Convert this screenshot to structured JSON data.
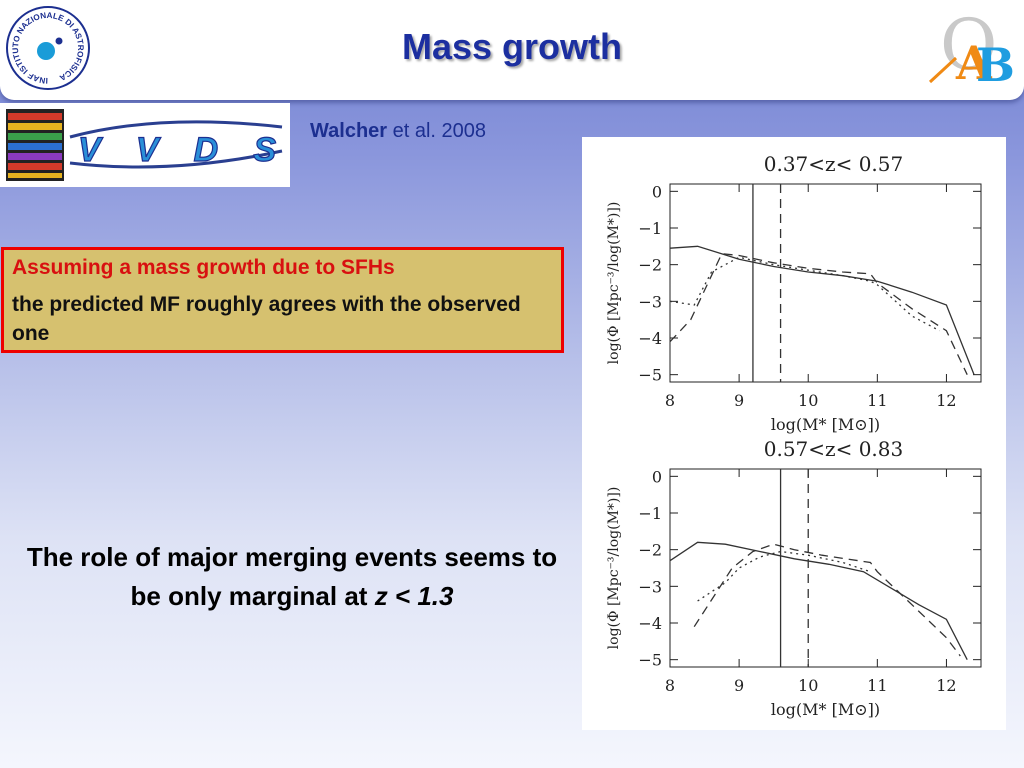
{
  "header": {
    "title": "Mass growth",
    "inaf_logo_text": "INAF ISTITUTO NAZIONALE DI ASTROFISICA",
    "oab_logo_text": "OAB"
  },
  "survey_logo": {
    "name": "VVDS",
    "icon": "spectra-strip-icon"
  },
  "citation": {
    "author": "Walcher",
    "rest": "et al. 2008"
  },
  "callout": {
    "line1": "Assuming a mass growth due to SFHs",
    "line2": "the predicted MF roughly agrees with the observed one"
  },
  "conclusion": {
    "text": "The role of major merging events seems to be only marginal at",
    "z_condition": "z < 1.3"
  },
  "colors": {
    "title": "#1c2fa0",
    "callout_bg": "#d6c16f",
    "callout_border": "#ee0000",
    "callout_accent": "#d81010"
  },
  "chart_data": [
    {
      "type": "line",
      "title": "0.37<z< 0.57",
      "xlabel": "log(M* [M⊙])",
      "ylabel": "log(Φ [Mpc⁻³/log(M*)])",
      "xlim": [
        8,
        12.5
      ],
      "ylim": [
        -5.2,
        0.2
      ],
      "xticks": [
        8,
        9,
        10,
        11,
        12
      ],
      "yticks": [
        0,
        -1,
        -2,
        -3,
        -4,
        -5
      ],
      "vlines": [
        {
          "x": 9.2,
          "style": "solid"
        },
        {
          "x": 9.6,
          "style": "dashed"
        }
      ],
      "series": [
        {
          "style": "solid",
          "x": [
            8.0,
            8.4,
            9.0,
            9.5,
            10.0,
            10.5,
            11.0,
            11.5,
            12.0,
            12.4
          ],
          "y": [
            -1.55,
            -1.5,
            -1.85,
            -2.05,
            -2.2,
            -2.3,
            -2.45,
            -2.75,
            -3.1,
            -5.0
          ]
        },
        {
          "style": "dashed",
          "x": [
            8.0,
            8.3,
            8.75,
            9.0,
            9.5,
            10.0,
            10.5,
            10.9,
            11.0,
            11.5,
            12.0,
            12.3
          ],
          "y": [
            -4.1,
            -3.5,
            -1.7,
            -1.75,
            -1.95,
            -2.1,
            -2.2,
            -2.25,
            -2.5,
            -3.2,
            -3.8,
            -5.0
          ]
        },
        {
          "style": "dotted",
          "x": [
            8.0,
            8.35,
            8.6,
            9.0,
            9.5,
            10.0,
            10.5,
            10.9,
            11.0,
            11.5,
            11.9
          ],
          "y": [
            -3.0,
            -3.1,
            -2.2,
            -1.8,
            -2.0,
            -2.15,
            -2.3,
            -2.45,
            -2.55,
            -3.4,
            -3.8
          ]
        }
      ]
    },
    {
      "type": "line",
      "title": "0.57<z< 0.83",
      "xlabel": "log(M* [M⊙])",
      "ylabel": "log(Φ [Mpc⁻³/log(M*)])",
      "xlim": [
        8,
        12.5
      ],
      "ylim": [
        -5.2,
        0.2
      ],
      "xticks": [
        8,
        9,
        10,
        11,
        12
      ],
      "yticks": [
        0,
        -1,
        -2,
        -3,
        -4,
        -5
      ],
      "vlines": [
        {
          "x": 9.6,
          "style": "solid"
        },
        {
          "x": 10.0,
          "style": "dashed"
        }
      ],
      "series": [
        {
          "style": "solid",
          "x": [
            8.0,
            8.4,
            8.8,
            9.3,
            9.8,
            10.3,
            10.8,
            11.2,
            11.6,
            12.0,
            12.3
          ],
          "y": [
            -2.3,
            -1.8,
            -1.85,
            -2.05,
            -2.25,
            -2.4,
            -2.6,
            -3.05,
            -3.5,
            -3.9,
            -5.0
          ]
        },
        {
          "style": "dashed",
          "x": [
            8.35,
            8.9,
            9.2,
            9.5,
            9.8,
            10.2,
            10.9,
            11.0,
            11.5,
            12.0,
            12.2
          ],
          "y": [
            -4.1,
            -2.5,
            -2.05,
            -1.85,
            -2.0,
            -2.15,
            -2.35,
            -2.6,
            -3.5,
            -4.4,
            -4.9
          ]
        },
        {
          "style": "dotted",
          "x": [
            8.4,
            8.8,
            9.0,
            9.3,
            9.6,
            10.0,
            10.5,
            10.9
          ],
          "y": [
            -3.4,
            -2.9,
            -2.5,
            -2.2,
            -2.05,
            -2.15,
            -2.35,
            -2.6
          ]
        }
      ]
    }
  ]
}
